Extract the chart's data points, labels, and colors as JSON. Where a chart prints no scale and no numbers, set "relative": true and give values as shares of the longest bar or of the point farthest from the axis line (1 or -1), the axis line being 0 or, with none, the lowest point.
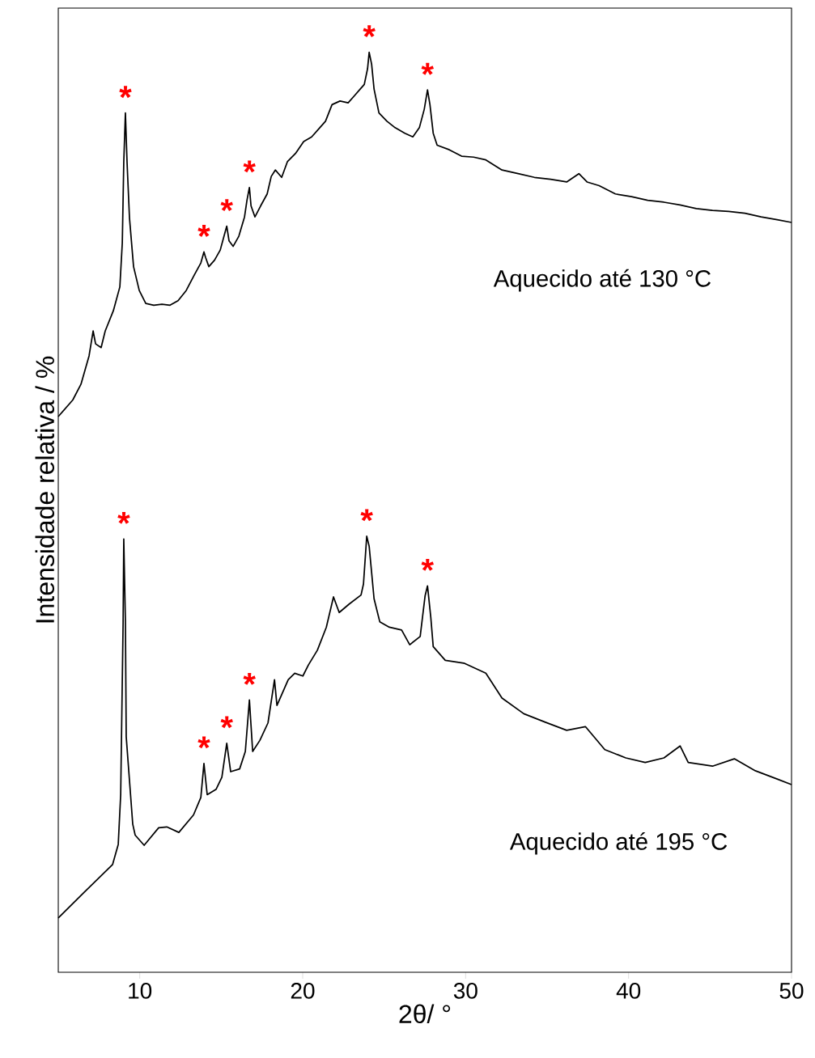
{
  "chart_data": {
    "type": "line",
    "relative": true,
    "xlabel": "2θ/ °",
    "ylabel": "Intensidade relativa / %",
    "xlim": [
      5,
      50
    ],
    "xticks": [
      10,
      20,
      30,
      40,
      50
    ],
    "series": [
      {
        "name": "Aquecido até 130 °C",
        "color": "#000000",
        "x": [
          5.0,
          5.89,
          6.39,
          6.89,
          7.14,
          7.29,
          7.63,
          7.88,
          8.38,
          8.78,
          8.93,
          9.02,
          9.12,
          9.22,
          9.37,
          9.62,
          9.97,
          10.37,
          10.86,
          11.36,
          11.86,
          12.35,
          12.85,
          13.35,
          13.75,
          13.94,
          14.04,
          14.24,
          14.59,
          14.94,
          15.14,
          15.34,
          15.48,
          15.73,
          16.08,
          16.43,
          16.58,
          16.73,
          16.83,
          17.07,
          17.42,
          17.82,
          18.07,
          18.32,
          18.71,
          19.06,
          19.56,
          20.06,
          20.55,
          21.05,
          21.4,
          21.8,
          22.29,
          22.79,
          23.19,
          23.53,
          23.78,
          23.98,
          24.08,
          24.23,
          24.38,
          24.68,
          25.17,
          25.67,
          26.27,
          26.76,
          27.16,
          27.46,
          27.66,
          27.81,
          28.01,
          28.25,
          29.0,
          29.75,
          30.49,
          31.24,
          32.23,
          33.22,
          34.22,
          35.21,
          36.2,
          36.95,
          37.45,
          38.19,
          39.19,
          40.18,
          41.17,
          42.17,
          43.16,
          44.16,
          45.15,
          46.14,
          47.14,
          48.13,
          49.12,
          50.0
        ],
        "values": [
          0.604,
          0.622,
          0.639,
          0.67,
          0.697,
          0.683,
          0.679,
          0.697,
          0.719,
          0.745,
          0.793,
          0.881,
          0.934,
          0.881,
          0.82,
          0.767,
          0.741,
          0.727,
          0.725,
          0.726,
          0.725,
          0.73,
          0.741,
          0.758,
          0.771,
          0.783,
          0.777,
          0.767,
          0.774,
          0.785,
          0.798,
          0.811,
          0.795,
          0.789,
          0.8,
          0.821,
          0.839,
          0.853,
          0.833,
          0.821,
          0.833,
          0.846,
          0.865,
          0.872,
          0.864,
          0.881,
          0.89,
          0.903,
          0.908,
          0.918,
          0.925,
          0.943,
          0.947,
          0.945,
          0.953,
          0.96,
          0.965,
          0.982,
          1.0,
          0.987,
          0.96,
          0.934,
          0.925,
          0.918,
          0.912,
          0.908,
          0.918,
          0.938,
          0.959,
          0.943,
          0.912,
          0.899,
          0.894,
          0.887,
          0.886,
          0.883,
          0.872,
          0.868,
          0.864,
          0.862,
          0.859,
          0.868,
          0.859,
          0.855,
          0.846,
          0.843,
          0.839,
          0.837,
          0.834,
          0.83,
          0.828,
          0.827,
          0.825,
          0.821,
          0.818,
          0.815
        ]
      },
      {
        "name": "Aquecido até  195 °C",
        "color": "#000000",
        "x": [
          5.0,
          6.54,
          8.33,
          8.68,
          8.83,
          8.98,
          9.02,
          9.12,
          9.17,
          9.57,
          9.72,
          10.27,
          11.16,
          11.66,
          12.4,
          13.3,
          13.75,
          13.94,
          14.14,
          14.69,
          15.04,
          15.34,
          15.58,
          16.13,
          16.48,
          16.73,
          16.93,
          17.37,
          17.87,
          18.27,
          18.42,
          19.11,
          19.51,
          20.01,
          20.35,
          20.9,
          21.45,
          21.89,
          22.24,
          22.84,
          23.58,
          23.73,
          23.93,
          24.08,
          24.38,
          24.73,
          25.32,
          26.07,
          26.57,
          27.21,
          27.51,
          27.66,
          27.86,
          28.01,
          28.75,
          29.89,
          31.24,
          32.23,
          33.57,
          34.86,
          36.2,
          37.35,
          38.54,
          39.83,
          41.02,
          42.17,
          43.16,
          43.66,
          45.15,
          46.49,
          47.78,
          49.12,
          50.0
        ],
        "values": [
          0.059,
          0.086,
          0.117,
          0.139,
          0.193,
          0.381,
          0.471,
          0.381,
          0.256,
          0.161,
          0.149,
          0.138,
          0.157,
          0.158,
          0.152,
          0.171,
          0.19,
          0.227,
          0.193,
          0.199,
          0.212,
          0.249,
          0.218,
          0.221,
          0.24,
          0.296,
          0.24,
          0.252,
          0.271,
          0.318,
          0.29,
          0.318,
          0.325,
          0.322,
          0.334,
          0.35,
          0.375,
          0.408,
          0.391,
          0.4,
          0.41,
          0.422,
          0.474,
          0.463,
          0.406,
          0.381,
          0.375,
          0.372,
          0.356,
          0.365,
          0.409,
          0.42,
          0.386,
          0.354,
          0.339,
          0.336,
          0.325,
          0.298,
          0.281,
          0.272,
          0.263,
          0.267,
          0.242,
          0.233,
          0.228,
          0.233,
          0.246,
          0.228,
          0.224,
          0.232,
          0.219,
          0.21,
          0.204
        ]
      }
    ],
    "annotations": [
      {
        "text": "*",
        "x": 9.12,
        "y": 0.934
      },
      {
        "text": "*",
        "x": 13.94,
        "y": 0.783
      },
      {
        "text": "*",
        "x": 15.34,
        "y": 0.811
      },
      {
        "text": "*",
        "x": 16.73,
        "y": 0.853
      },
      {
        "text": "*",
        "x": 24.08,
        "y": 1.0
      },
      {
        "text": "*",
        "x": 27.66,
        "y": 0.959
      },
      {
        "text": "*",
        "x": 9.02,
        "y": 0.471
      },
      {
        "text": "*",
        "x": 13.94,
        "y": 0.227
      },
      {
        "text": "*",
        "x": 15.34,
        "y": 0.249
      },
      {
        "text": "*",
        "x": 16.73,
        "y": 0.296
      },
      {
        "text": "*",
        "x": 23.93,
        "y": 0.474
      },
      {
        "text": "*",
        "x": 27.66,
        "y": 0.42
      }
    ]
  }
}
